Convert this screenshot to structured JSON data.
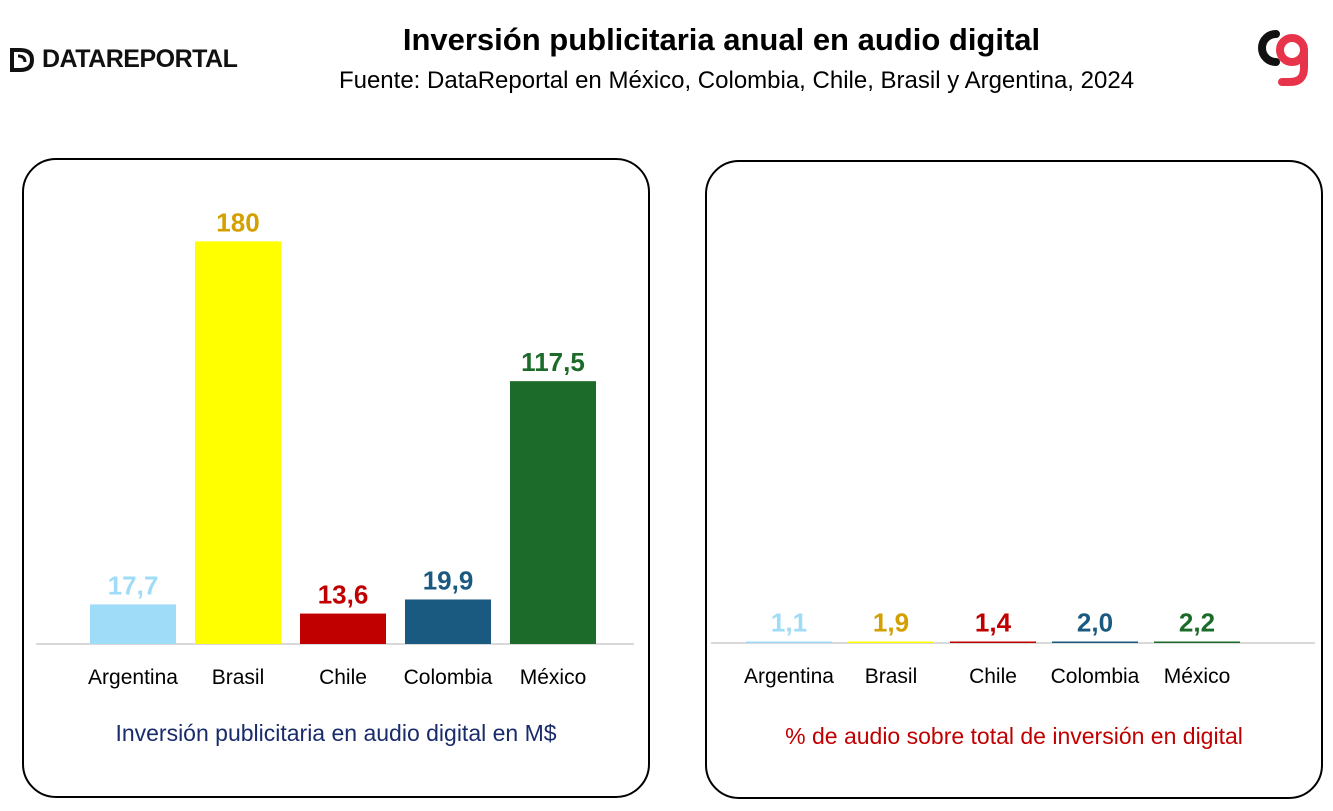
{
  "header": {
    "brand_text": "DATAREPORTAL",
    "title": "Inversión publicitaria anual en audio digital",
    "subtitle": "Fuente: DataReportal en México, Colombia, Chile, Brasil y Argentina,  2024"
  },
  "logo": {
    "icon": "cg-logo-icon",
    "colors": [
      "#111111",
      "#e8344a"
    ]
  },
  "colors": {
    "Argentina": "#9fdcf7",
    "Brasil": "#ffff00",
    "Chile": "#c00000",
    "Colombia": "#1a5a80",
    "México": "#1c6b2a",
    "Brasil_label": "#d4a000",
    "Argentina_label": "#9fdcf7"
  },
  "chart_data": [
    {
      "type": "bar",
      "title": "",
      "xlabel": "Inversión publicitaria en audio digital en M$",
      "ylabel": "",
      "categories": [
        "Argentina",
        "Brasil",
        "Chile",
        "Colombia",
        "México"
      ],
      "values": [
        17.7,
        180,
        13.6,
        19.9,
        117.5
      ],
      "value_labels": [
        "17,7",
        "180",
        "13,6",
        "19,9",
        "117,5"
      ],
      "ylim": [
        0,
        190
      ],
      "grid": false,
      "legend": "none"
    },
    {
      "type": "bar",
      "title": "",
      "xlabel": "% de audio sobre total de inversión en digital",
      "ylabel": "",
      "categories": [
        "Argentina",
        "Brasil",
        "Chile",
        "Colombia",
        "México"
      ],
      "values": [
        1.1,
        1.9,
        1.4,
        2.0,
        2.2
      ],
      "value_labels": [
        "1,1",
        "1,9",
        "1,4",
        "2,0",
        "2,2"
      ],
      "ylim": [
        0,
        100
      ],
      "grid": false,
      "legend": "none"
    }
  ]
}
